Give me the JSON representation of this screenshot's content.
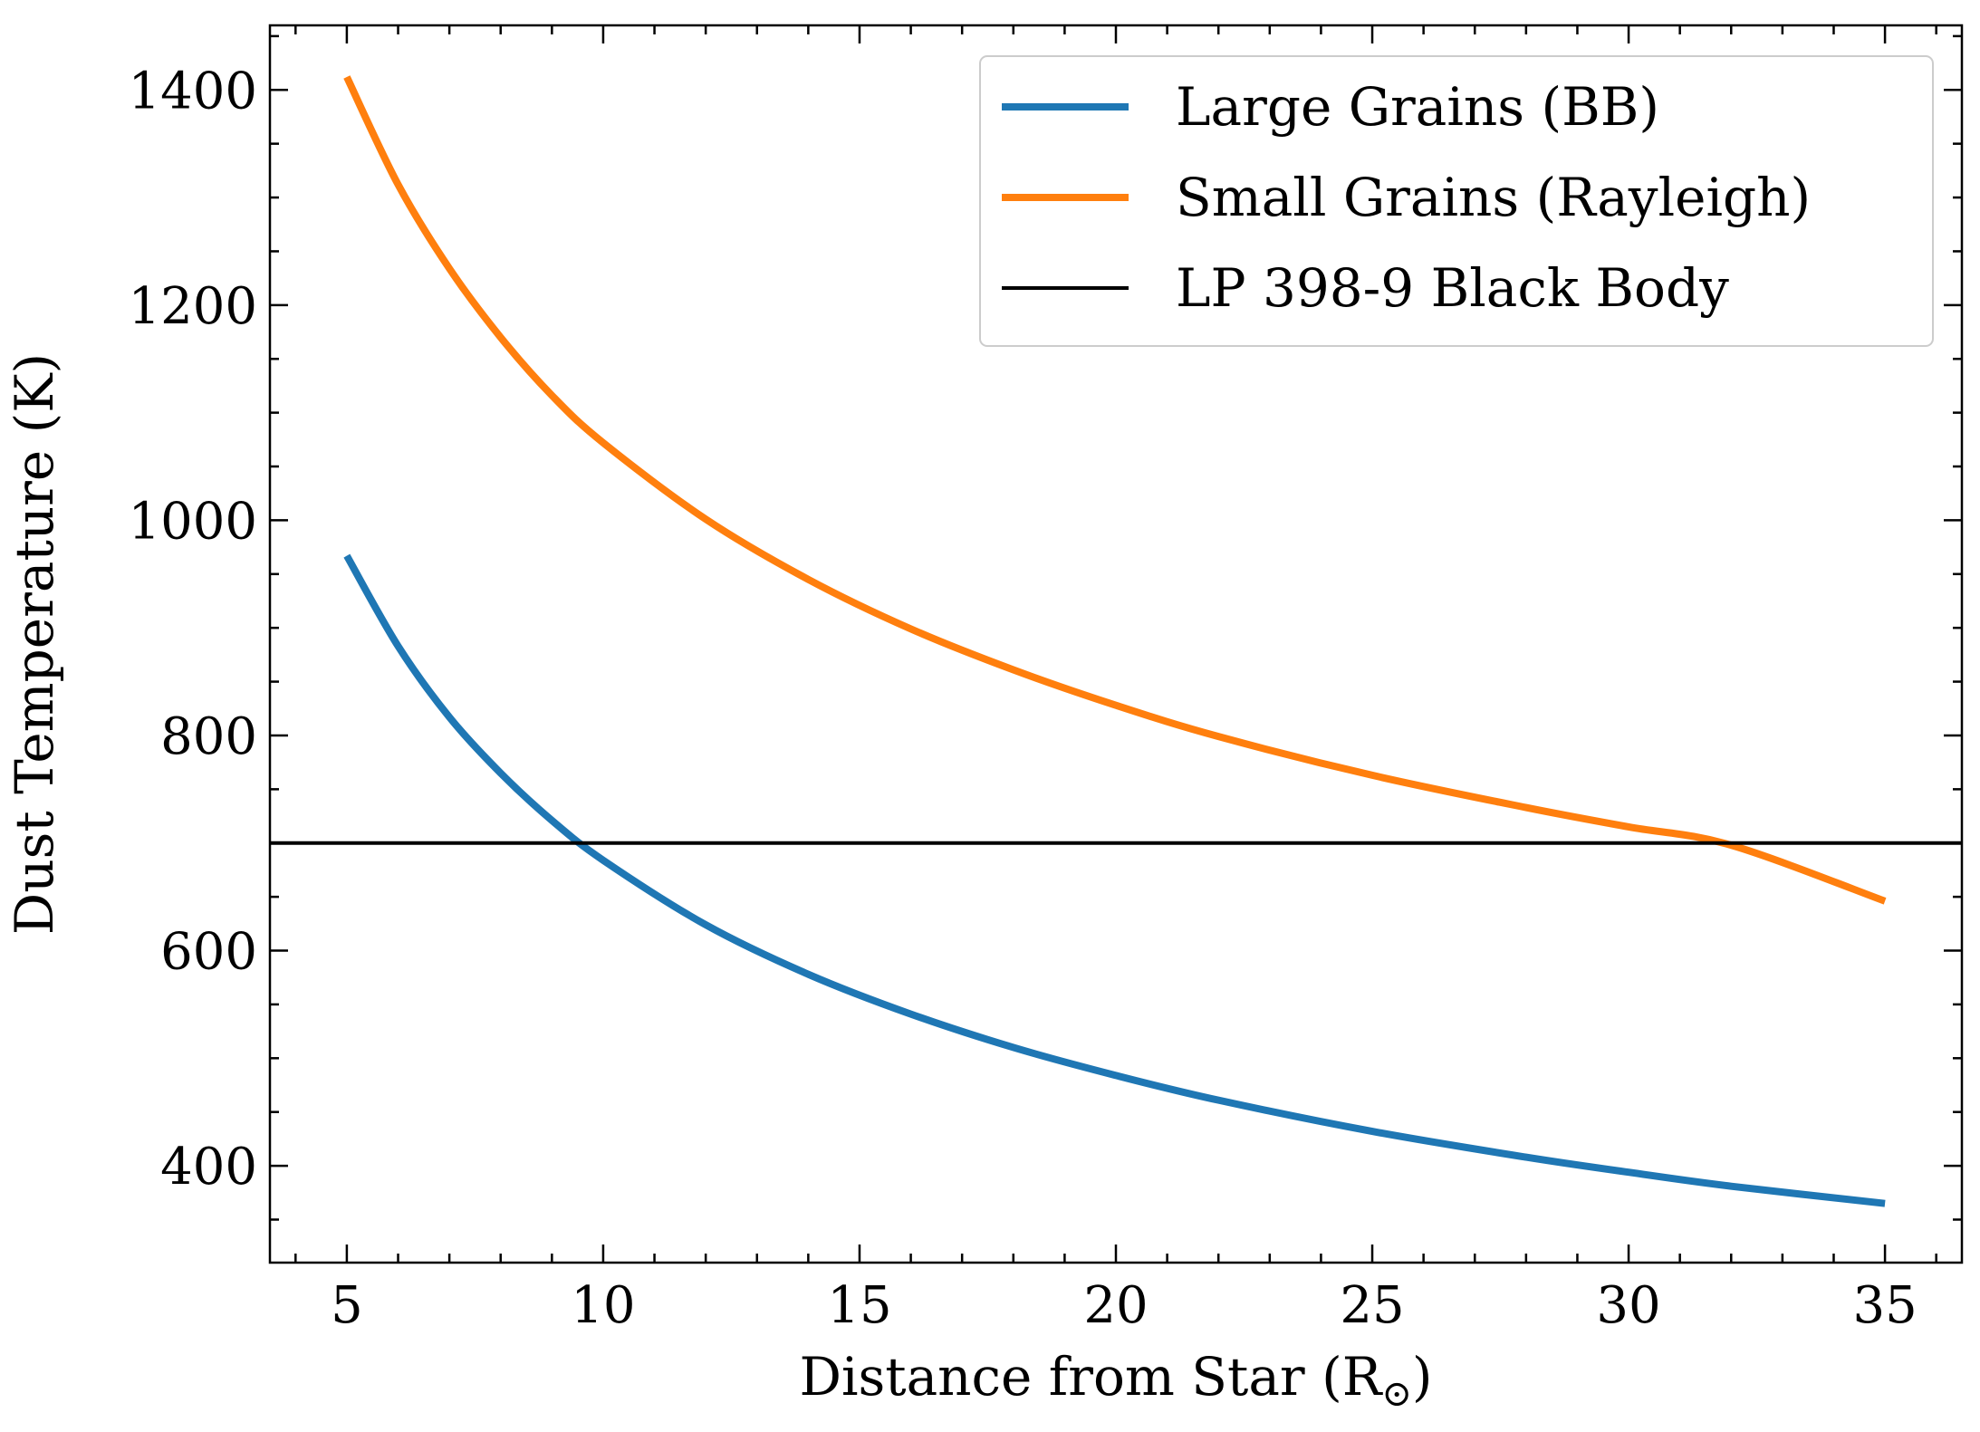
{
  "chart_data": {
    "type": "line",
    "xlabel": "Distance from Star (R",
    "xlabel_subscript": "⊙",
    "xlabel_close": ")",
    "ylabel": "Dust Temperature (K)",
    "xlim": [
      3.5,
      36.5
    ],
    "ylim": [
      310,
      1460
    ],
    "x_ticks": [
      5,
      10,
      15,
      20,
      25,
      30,
      35
    ],
    "x_tick_labels": [
      "5",
      "10",
      "15",
      "20",
      "25",
      "30",
      "35"
    ],
    "x_minor_step": 1,
    "y_ticks": [
      400,
      600,
      800,
      1000,
      1200,
      1400
    ],
    "y_tick_labels": [
      "400",
      "600",
      "800",
      "1000",
      "1200",
      "1400"
    ],
    "y_minor_step": 50,
    "grid": false,
    "legend_position": "top-right",
    "series": [
      {
        "name": "Large Grains (BB)",
        "color": "#1f77b4",
        "x": [
          5,
          6,
          7,
          8,
          9,
          10,
          12,
          14,
          16,
          18,
          20,
          22,
          25,
          28,
          30,
          32,
          35
        ],
        "y": [
          967,
          883,
          817,
          765,
          721,
          684,
          624,
          578,
          541,
          510,
          484,
          461,
          432,
          408,
          394,
          381,
          365
        ]
      },
      {
        "name": "Small Grains (Rayleigh)",
        "color": "#ff7f0e",
        "x": [
          5,
          6,
          7,
          8,
          9,
          10,
          12,
          14,
          16,
          18,
          20,
          22,
          25,
          28,
          30,
          32,
          35
        ],
        "y": [
          1412,
          1312,
          1234,
          1170,
          1116,
          1072,
          1001,
          945,
          899,
          861,
          828,
          799,
          763,
          733,
          715,
          698,
          646
        ]
      },
      {
        "name": "LP 398-9 Black Body",
        "color": "#000000",
        "x": [
          3.5,
          36.5
        ],
        "y": [
          700,
          700
        ]
      }
    ]
  }
}
